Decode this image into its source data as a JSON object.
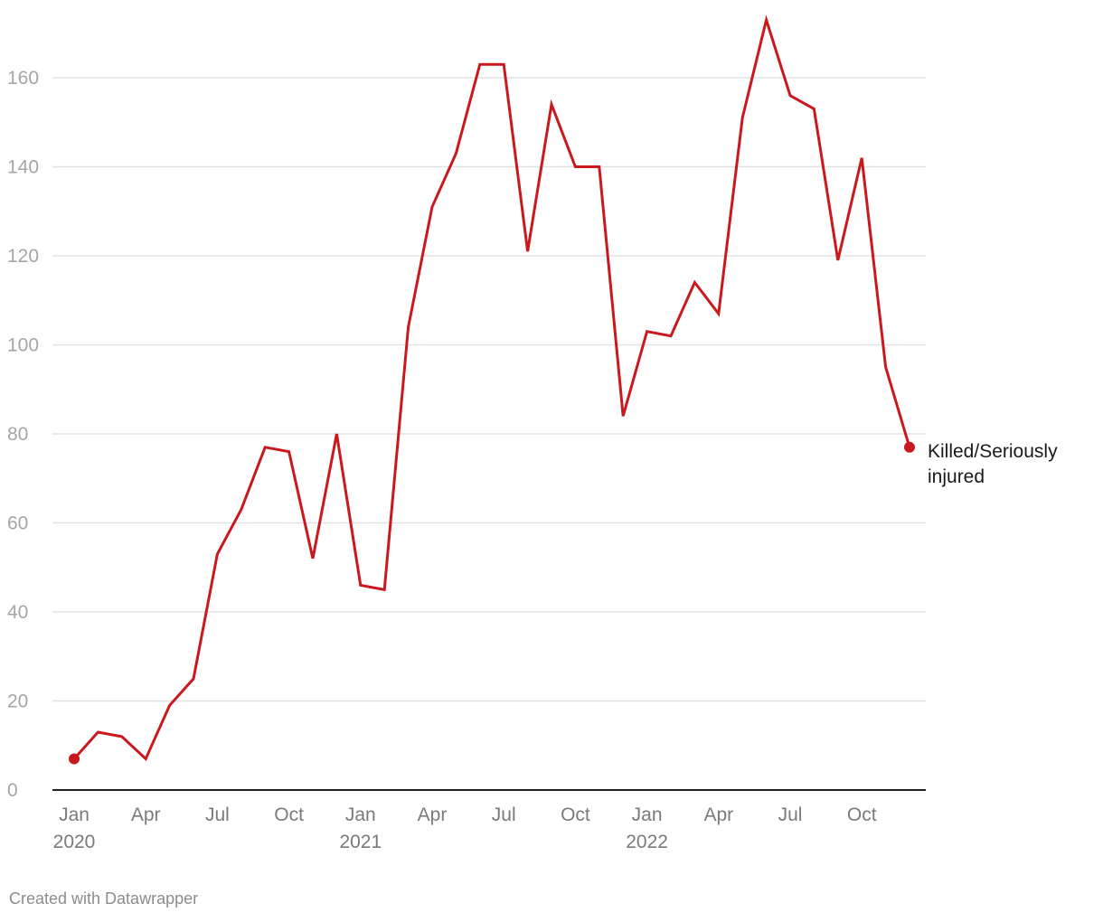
{
  "chart_data": {
    "type": "line",
    "title": "",
    "xlabel": "",
    "ylabel": "",
    "ylim": [
      0,
      175
    ],
    "yticks": [
      0,
      20,
      40,
      60,
      80,
      100,
      120,
      140,
      160
    ],
    "x_tick_labels": [
      {
        "month_index": 0,
        "line1": "Jan",
        "line2": "2020"
      },
      {
        "month_index": 3,
        "line1": "Apr",
        "line2": ""
      },
      {
        "month_index": 6,
        "line1": "Jul",
        "line2": ""
      },
      {
        "month_index": 9,
        "line1": "Oct",
        "line2": ""
      },
      {
        "month_index": 12,
        "line1": "Jan",
        "line2": "2021"
      },
      {
        "month_index": 15,
        "line1": "Apr",
        "line2": ""
      },
      {
        "month_index": 18,
        "line1": "Jul",
        "line2": ""
      },
      {
        "month_index": 21,
        "line1": "Oct",
        "line2": ""
      },
      {
        "month_index": 24,
        "line1": "Jan",
        "line2": "2022"
      },
      {
        "month_index": 27,
        "line1": "Apr",
        "line2": ""
      },
      {
        "month_index": 30,
        "line1": "Jul",
        "line2": ""
      },
      {
        "month_index": 33,
        "line1": "Oct",
        "line2": ""
      }
    ],
    "series": [
      {
        "name": "Killed/Seriously injured",
        "label_lines": [
          "Killed/Seriously",
          "injured"
        ],
        "color": "#c9191e",
        "start": "2020-01",
        "end": "2022-12",
        "values": [
          7,
          13,
          12,
          7,
          19,
          25,
          53,
          63,
          77,
          76,
          52,
          80,
          46,
          45,
          104,
          131,
          143,
          163,
          163,
          121,
          154,
          140,
          140,
          84,
          103,
          102,
          114,
          107,
          151,
          173,
          156,
          153,
          119,
          142,
          95,
          77
        ]
      }
    ]
  },
  "credit": "Created with Datawrapper"
}
